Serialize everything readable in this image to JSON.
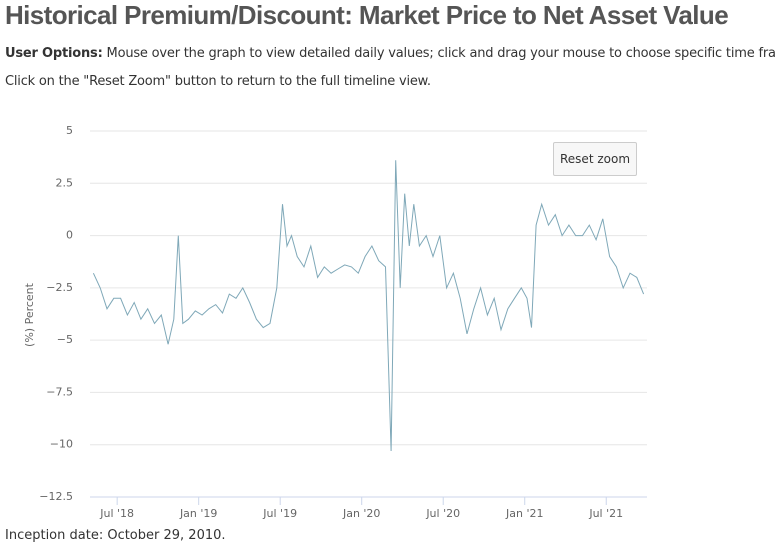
{
  "header": {
    "title": "Historical Premium/Discount: Market Price to Net Asset Value",
    "options_label": "User Options:",
    "options_text": "Mouse over the graph to view detailed daily values; click and drag your mouse to choose specific time frames.",
    "reset_note": "Click on the \"Reset Zoom\" button to return to the full timeline view."
  },
  "reset_button": "Reset zoom",
  "footer": "Inception date: October 29, 2010.",
  "chart_data": {
    "type": "line",
    "y_label": "(%) Percent",
    "color": "#7fa8b8",
    "grid": true,
    "x": [
      "2018-05",
      "2018-05",
      "2018-06",
      "2018-06",
      "2018-07",
      "2018-07",
      "2018-08",
      "2018-08",
      "2018-09",
      "2018-09",
      "2018-10",
      "2018-10",
      "2018-11",
      "2018-11",
      "2018-11",
      "2018-12",
      "2018-12",
      "2019-01",
      "2019-01",
      "2019-02",
      "2019-02",
      "2019-03",
      "2019-03",
      "2019-04",
      "2019-04",
      "2019-05",
      "2019-05",
      "2019-06",
      "2019-06",
      "2019-07",
      "2019-07",
      "2019-07",
      "2019-08",
      "2019-08",
      "2019-09",
      "2019-09",
      "2019-10",
      "2019-10",
      "2019-11",
      "2019-11",
      "2019-12",
      "2019-12",
      "2020-01",
      "2020-01",
      "2020-02",
      "2020-02",
      "2020-03",
      "2020-03",
      "2020-03",
      "2020-04",
      "2020-04",
      "2020-04",
      "2020-05",
      "2020-05",
      "2020-06",
      "2020-06",
      "2020-07",
      "2020-07",
      "2020-08",
      "2020-08",
      "2020-09",
      "2020-09",
      "2020-10",
      "2020-10",
      "2020-11",
      "2020-11",
      "2020-12",
      "2020-12",
      "2021-01",
      "2021-01",
      "2021-01",
      "2021-02",
      "2021-02",
      "2021-03",
      "2021-03",
      "2021-04",
      "2021-04",
      "2021-05",
      "2021-05",
      "2021-06",
      "2021-06",
      "2021-07",
      "2021-07",
      "2021-08",
      "2021-08",
      "2021-09",
      "2021-09"
    ],
    "values": [
      -1.8,
      -2.5,
      -3.5,
      -3,
      -3,
      -3.8,
      -3.2,
      -4,
      -3.5,
      -4.2,
      -3.8,
      -5.2,
      -4,
      0,
      -4.2,
      -4,
      -3.6,
      -3.8,
      -3.5,
      -3.3,
      -3.7,
      -2.8,
      -3,
      -2.5,
      -3.2,
      -4,
      -4.4,
      -4.2,
      -2.5,
      1.5,
      -0.5,
      0,
      -1,
      -1.5,
      -0.5,
      -2,
      -1.5,
      -1.8,
      -1.6,
      -1.4,
      -1.5,
      -1.8,
      -1,
      -0.5,
      -1.2,
      -1.5,
      -10.3,
      3.6,
      -2.5,
      2,
      -0.5,
      1.5,
      -0.5,
      0,
      -1,
      0,
      -2.5,
      -1.8,
      -3,
      -4.7,
      -3.5,
      -2.5,
      -3.8,
      -3,
      -4.5,
      -3.5,
      -3,
      -2.5,
      -3,
      -4.4,
      0.5,
      1.5,
      0.5,
      1,
      0,
      0.5,
      0,
      0,
      0.5,
      -0.2,
      0.8,
      -1,
      -1.5,
      -2.5,
      -1.8,
      -2,
      -2.8
    ],
    "xlim": [
      "2018-05",
      "2021-10"
    ],
    "xticks": [
      {
        "value": "2018-07",
        "label": "Jul '18"
      },
      {
        "value": "2019-01",
        "label": "Jan '19"
      },
      {
        "value": "2019-07",
        "label": "Jul '19"
      },
      {
        "value": "2020-01",
        "label": "Jan '20"
      },
      {
        "value": "2020-07",
        "label": "Jul '20"
      },
      {
        "value": "2021-01",
        "label": "Jan '21"
      },
      {
        "value": "2021-07",
        "label": "Jul '21"
      }
    ],
    "ylim": [
      -12.5,
      5
    ],
    "yticks": [
      5,
      2.5,
      0,
      {
        "value": -2.5,
        "label": "−2.5"
      },
      {
        "value": -5,
        "label": "−5"
      },
      {
        "value": -7.5,
        "label": "−7.5"
      },
      {
        "value": -10,
        "label": "−10"
      },
      {
        "value": -12.5,
        "label": "−12.5"
      }
    ]
  }
}
